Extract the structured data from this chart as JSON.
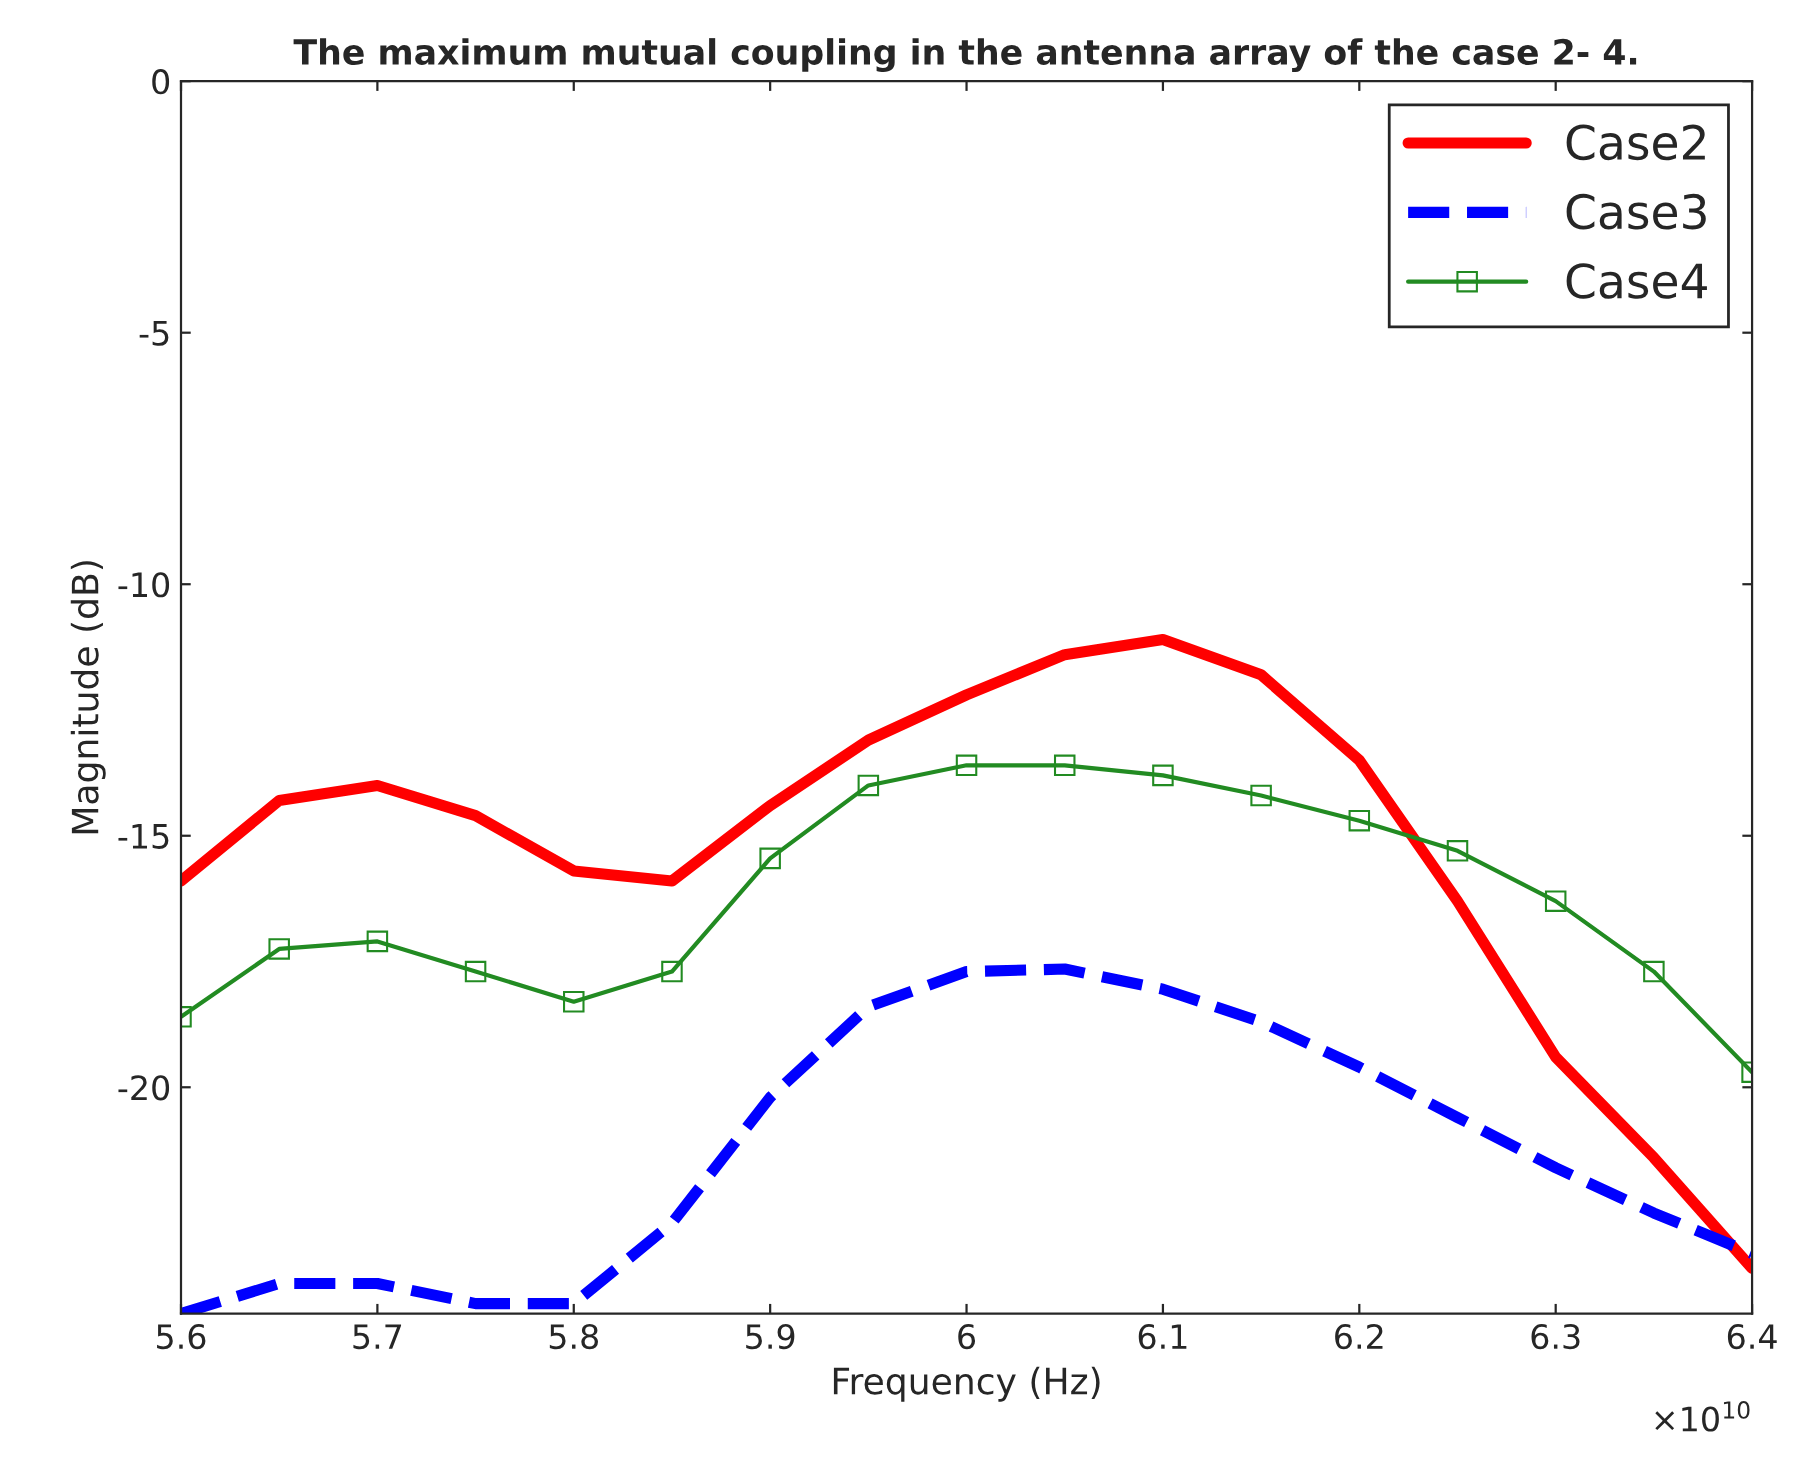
{
  "chart_data": {
    "type": "line",
    "title": "The maximum mutual coupling in the antenna array of the case 2- 4.",
    "xlabel": "Frequency (Hz)",
    "ylabel": "Magnitude (dB)",
    "x": [
      5.6,
      5.65,
      5.7,
      5.75,
      5.8,
      5.85,
      5.9,
      5.95,
      6,
      6.05,
      6.1,
      6.15,
      6.2,
      6.25,
      6.3,
      6.35,
      6.4
    ],
    "series": [
      {
        "name": "Case2",
        "color": "#ff0000",
        "line_style": "solid",
        "marker": "none",
        "values": [
          -15.9,
          -14.3,
          -14.0,
          -14.6,
          -15.7,
          -15.9,
          -14.4,
          -13.1,
          -12.2,
          -11.4,
          -11.1,
          -11.8,
          -13.5,
          -16.3,
          -19.4,
          -21.4,
          -23.6
        ]
      },
      {
        "name": "Case3",
        "color": "#0000ff",
        "line_style": "dashed",
        "marker": "none",
        "values": [
          -24.5,
          -23.9,
          -23.9,
          -24.3,
          -24.3,
          -22.7,
          -20.2,
          -18.4,
          -17.7,
          -17.65,
          -18.05,
          -18.7,
          -19.6,
          -20.6,
          -21.6,
          -22.5,
          -23.3
        ]
      },
      {
        "name": "Case4",
        "color": "#228b22",
        "line_style": "solid",
        "marker": "square",
        "values": [
          -18.6,
          -17.25,
          -17.1,
          -17.7,
          -18.3,
          -17.7,
          -15.45,
          -14.0,
          -13.6,
          -13.6,
          -13.8,
          -14.2,
          -14.7,
          -15.3,
          -16.3,
          -17.7,
          -19.7
        ]
      }
    ],
    "xlim": [
      5.6,
      6.4
    ],
    "xticks": [
      5.6,
      5.7,
      5.8,
      5.9,
      6,
      6.1,
      6.2,
      6.3,
      6.4
    ],
    "ylim": [
      -24.5,
      0
    ],
    "yticks": [
      -20,
      -15,
      -10,
      -5,
      0
    ],
    "annotations": [
      "×10$^{10}$"
    ],
    "legend": "top right",
    "grid": false
  }
}
